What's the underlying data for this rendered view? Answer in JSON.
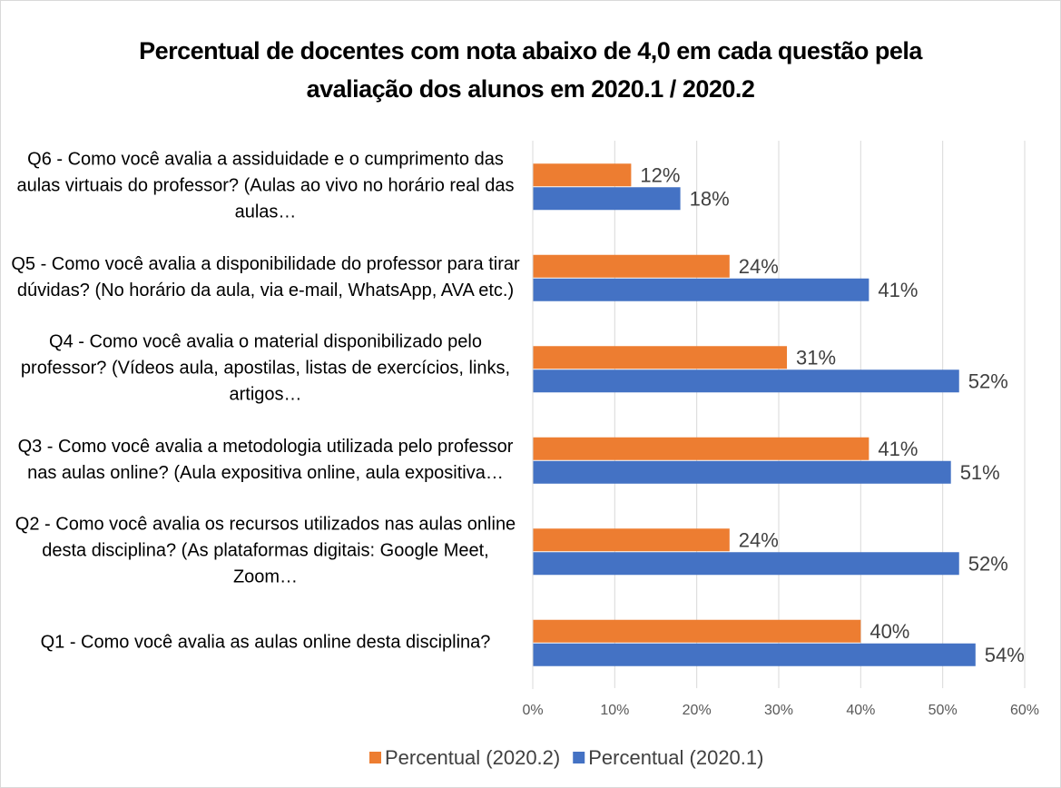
{
  "chart_data": {
    "type": "hbar",
    "title": "Percentual de docentes com nota abaixo de 4,0 em cada questão pela avaliação dos alunos em 2020.1 / 2020.2",
    "categories": [
      "Q6 - Como você avalia a assiduidade e o cumprimento das aulas virtuais do professor? (Aulas ao vivo no horário real das aulas…",
      "Q5 - Como você avalia a disponibilidade do professor para tirar dúvidas? (No horário da aula, via e-mail, WhatsApp, AVA etc.)",
      "Q4 - Como você avalia o material disponibilizado pelo professor? (Vídeos aula, apostilas, listas de exercícios, links, artigos…",
      "Q3 - Como você avalia a metodologia utilizada pelo professor nas aulas online? (Aula expositiva online, aula expositiva…",
      "Q2 - Como você avalia os recursos utilizados nas aulas online desta disciplina? (As plataformas digitais: Google Meet, Zoom…",
      "Q1 - Como você avalia as aulas online desta disciplina?"
    ],
    "series": [
      {
        "name": "Percentual (2020.2)",
        "color": "#ed7d31",
        "values": [
          12,
          24,
          31,
          41,
          24,
          40
        ],
        "value_labels": [
          "12%",
          "24%",
          "31%",
          "41%",
          "24%",
          "40%"
        ]
      },
      {
        "name": "Percentual (2020.1)",
        "color": "#4472c4",
        "values": [
          18,
          41,
          52,
          51,
          52,
          54
        ],
        "value_labels": [
          "18%",
          "41%",
          "52%",
          "51%",
          "52%",
          "54%"
        ]
      }
    ],
    "xlim": [
      0,
      60
    ],
    "xticks": [
      {
        "value": 0,
        "label": "0%"
      },
      {
        "value": 10,
        "label": "10%"
      },
      {
        "value": 20,
        "label": "20%"
      },
      {
        "value": 30,
        "label": "30%"
      },
      {
        "value": 40,
        "label": "40%"
      },
      {
        "value": 50,
        "label": "50%"
      },
      {
        "value": 60,
        "label": "60%"
      }
    ],
    "grid": true
  }
}
